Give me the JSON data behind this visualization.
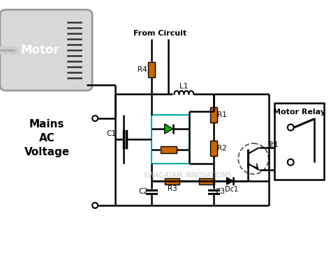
{
  "background_color": "#ffffff",
  "motor_label": "Motor",
  "mains_label": [
    "Mains",
    "AC",
    "Voltage"
  ],
  "from_circuit_label": "From Circuit",
  "motor_relay_label": "Motor Relay",
  "watermark": "SWAGATAM INNOVATIONS",
  "component_color": "#cc6600",
  "green_led_color": "#00bb00",
  "line_color": "#000000",
  "teal_color": "#00aaaa",
  "dashed_circle_color": "#666666"
}
